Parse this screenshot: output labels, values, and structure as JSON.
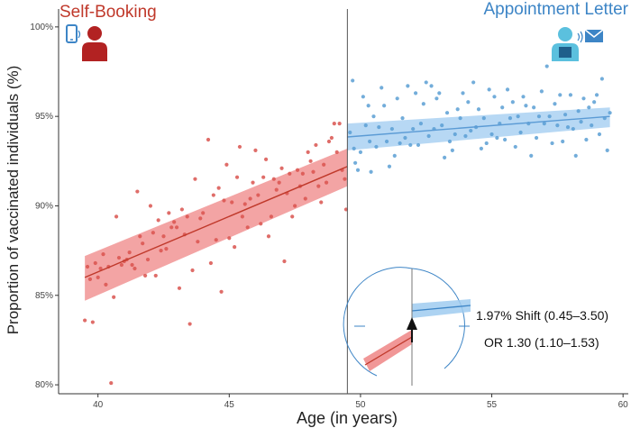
{
  "chart_data": {
    "type": "scatter",
    "title_left": "Self-Booking",
    "title_right": "Appointment Letter",
    "xlabel": "Age (in years)",
    "ylabel": "Proportion of  vaccinated individuals (%)",
    "xlim": [
      38.5,
      60.2
    ],
    "ylim": [
      79.5,
      101.0
    ],
    "x_ticks": [
      40,
      45,
      50,
      55,
      60
    ],
    "y_ticks": [
      80,
      85,
      90,
      95,
      100
    ],
    "y_tick_labels": [
      "80%",
      "85%",
      "90%",
      "95%",
      "100%"
    ],
    "cutoff": 49.5,
    "colors": {
      "left": "#c0392b",
      "right": "#5b9bd5",
      "left_band": "#ef8585",
      "right_band": "#9fcbf0",
      "left_point": "#d9534f",
      "right_point": "#5a9fd4"
    },
    "series": [
      {
        "name": "Self-Booking",
        "fit": {
          "x": [
            39.5,
            49.5
          ],
          "y": [
            86.0,
            92.2
          ]
        },
        "ci_upper": [
          87.2,
          93.2
        ],
        "ci_lower": [
          84.7,
          91.1
        ],
        "points": [
          [
            39.5,
            83.6
          ],
          [
            39.6,
            86.6
          ],
          [
            39.7,
            85.9
          ],
          [
            39.8,
            83.5
          ],
          [
            39.9,
            86.8
          ],
          [
            40.0,
            86.0
          ],
          [
            40.1,
            86.5
          ],
          [
            40.2,
            87.3
          ],
          [
            40.3,
            85.6
          ],
          [
            40.4,
            86.6
          ],
          [
            40.5,
            80.1
          ],
          [
            40.6,
            84.9
          ],
          [
            40.7,
            89.4
          ],
          [
            40.8,
            87.1
          ],
          [
            40.9,
            86.7
          ],
          [
            41.0,
            86.9
          ],
          [
            41.1,
            87.0
          ],
          [
            41.2,
            87.4
          ],
          [
            41.3,
            86.7
          ],
          [
            41.4,
            86.5
          ],
          [
            41.5,
            90.8
          ],
          [
            41.6,
            88.3
          ],
          [
            41.7,
            87.9
          ],
          [
            41.8,
            86.1
          ],
          [
            41.9,
            87.0
          ],
          [
            42.0,
            90.0
          ],
          [
            42.1,
            88.5
          ],
          [
            42.2,
            86.1
          ],
          [
            42.3,
            89.2
          ],
          [
            42.4,
            87.5
          ],
          [
            42.5,
            88.3
          ],
          [
            42.6,
            87.6
          ],
          [
            42.7,
            89.6
          ],
          [
            42.8,
            88.8
          ],
          [
            42.9,
            89.1
          ],
          [
            43.0,
            88.8
          ],
          [
            43.1,
            85.4
          ],
          [
            43.2,
            89.8
          ],
          [
            43.3,
            88.4
          ],
          [
            43.4,
            89.4
          ],
          [
            43.5,
            83.4
          ],
          [
            43.6,
            86.4
          ],
          [
            43.7,
            91.5
          ],
          [
            43.8,
            88.0
          ],
          [
            43.9,
            89.3
          ],
          [
            44.0,
            89.6
          ],
          [
            44.2,
            93.7
          ],
          [
            44.3,
            86.8
          ],
          [
            44.4,
            90.6
          ],
          [
            44.5,
            88.1
          ],
          [
            44.6,
            91.0
          ],
          [
            44.7,
            85.2
          ],
          [
            44.8,
            90.3
          ],
          [
            44.9,
            92.3
          ],
          [
            45.0,
            88.2
          ],
          [
            45.1,
            90.2
          ],
          [
            45.2,
            87.7
          ],
          [
            45.3,
            91.6
          ],
          [
            45.4,
            93.3
          ],
          [
            45.5,
            89.4
          ],
          [
            45.6,
            90.1
          ],
          [
            45.7,
            88.8
          ],
          [
            45.8,
            90.4
          ],
          [
            45.9,
            91.3
          ],
          [
            46.0,
            93.1
          ],
          [
            46.1,
            90.6
          ],
          [
            46.2,
            89.0
          ],
          [
            46.3,
            91.6
          ],
          [
            46.4,
            92.6
          ],
          [
            46.5,
            88.3
          ],
          [
            46.6,
            89.4
          ],
          [
            46.7,
            91.5
          ],
          [
            46.8,
            90.9
          ],
          [
            46.9,
            91.3
          ],
          [
            47.0,
            92.1
          ],
          [
            47.1,
            86.9
          ],
          [
            47.2,
            90.7
          ],
          [
            47.3,
            91.8
          ],
          [
            47.4,
            89.4
          ],
          [
            47.5,
            90.0
          ],
          [
            47.6,
            92.0
          ],
          [
            47.7,
            91.1
          ],
          [
            47.8,
            91.8
          ],
          [
            47.9,
            90.4
          ],
          [
            48.0,
            93.0
          ],
          [
            48.1,
            92.5
          ],
          [
            48.2,
            91.9
          ],
          [
            48.3,
            93.4
          ],
          [
            48.4,
            91.1
          ],
          [
            48.5,
            90.2
          ],
          [
            48.6,
            92.3
          ],
          [
            48.7,
            91.3
          ],
          [
            48.8,
            93.6
          ],
          [
            48.9,
            93.8
          ],
          [
            49.0,
            94.6
          ],
          [
            49.1,
            93.0
          ],
          [
            49.2,
            94.6
          ],
          [
            49.3,
            92.0
          ],
          [
            49.4,
            91.5
          ],
          [
            49.45,
            89.8
          ]
        ]
      },
      {
        "name": "Appointment Letter",
        "fit": {
          "x": [
            49.5,
            59.5
          ],
          "y": [
            93.85,
            95.0
          ]
        },
        "ci_upper": [
          94.6,
          95.5
        ],
        "ci_lower": [
          93.1,
          94.4
        ],
        "points": [
          [
            49.6,
            94.1
          ],
          [
            49.7,
            97.0
          ],
          [
            49.75,
            93.2
          ],
          [
            49.8,
            92.4
          ],
          [
            49.9,
            92.0
          ],
          [
            50.0,
            93.0
          ],
          [
            50.1,
            96.1
          ],
          [
            50.2,
            94.5
          ],
          [
            50.3,
            95.6
          ],
          [
            50.35,
            93.6
          ],
          [
            50.4,
            91.9
          ],
          [
            50.5,
            95.0
          ],
          [
            50.6,
            93.3
          ],
          [
            50.7,
            94.4
          ],
          [
            50.8,
            96.6
          ],
          [
            50.9,
            95.6
          ],
          [
            51.0,
            93.6
          ],
          [
            51.1,
            92.2
          ],
          [
            51.2,
            94.3
          ],
          [
            51.3,
            92.8
          ],
          [
            51.4,
            96.0
          ],
          [
            51.5,
            93.5
          ],
          [
            51.6,
            94.9
          ],
          [
            51.7,
            93.8
          ],
          [
            51.8,
            96.7
          ],
          [
            51.9,
            93.4
          ],
          [
            52.0,
            94.3
          ],
          [
            52.1,
            96.3
          ],
          [
            52.2,
            93.4
          ],
          [
            52.3,
            94.6
          ],
          [
            52.4,
            95.7
          ],
          [
            52.5,
            96.9
          ],
          [
            52.6,
            93.9
          ],
          [
            52.7,
            96.7
          ],
          [
            52.8,
            94.3
          ],
          [
            52.9,
            96.0
          ],
          [
            53.0,
            96.3
          ],
          [
            53.1,
            94.5
          ],
          [
            53.2,
            92.7
          ],
          [
            53.3,
            95.2
          ],
          [
            53.4,
            93.6
          ],
          [
            53.5,
            93.1
          ],
          [
            53.6,
            94.0
          ],
          [
            53.7,
            95.4
          ],
          [
            53.8,
            94.9
          ],
          [
            53.9,
            96.3
          ],
          [
            54.0,
            93.9
          ],
          [
            54.1,
            95.8
          ],
          [
            54.2,
            94.2
          ],
          [
            54.3,
            96.9
          ],
          [
            54.4,
            94.4
          ],
          [
            54.5,
            95.4
          ],
          [
            54.6,
            93.2
          ],
          [
            54.7,
            94.9
          ],
          [
            54.8,
            93.5
          ],
          [
            54.9,
            96.5
          ],
          [
            55.0,
            94.0
          ],
          [
            55.1,
            96.1
          ],
          [
            55.2,
            93.8
          ],
          [
            55.3,
            94.6
          ],
          [
            55.4,
            95.5
          ],
          [
            55.5,
            93.7
          ],
          [
            55.6,
            96.5
          ],
          [
            55.7,
            94.9
          ],
          [
            55.8,
            95.8
          ],
          [
            55.9,
            93.3
          ],
          [
            56.0,
            95.0
          ],
          [
            56.1,
            94.1
          ],
          [
            56.2,
            96.1
          ],
          [
            56.3,
            95.6
          ],
          [
            56.4,
            94.6
          ],
          [
            56.5,
            92.8
          ],
          [
            56.6,
            95.5
          ],
          [
            56.7,
            93.8
          ],
          [
            56.8,
            95.0
          ],
          [
            56.9,
            96.4
          ],
          [
            57.0,
            94.6
          ],
          [
            57.1,
            97.8
          ],
          [
            57.2,
            95.0
          ],
          [
            57.3,
            93.5
          ],
          [
            57.4,
            95.7
          ],
          [
            57.5,
            94.5
          ],
          [
            57.6,
            96.2
          ],
          [
            57.7,
            93.6
          ],
          [
            57.8,
            95.1
          ],
          [
            57.9,
            94.4
          ],
          [
            58.0,
            96.2
          ],
          [
            58.1,
            94.3
          ],
          [
            58.2,
            92.8
          ],
          [
            58.3,
            95.3
          ],
          [
            58.4,
            94.7
          ],
          [
            58.5,
            96.0
          ],
          [
            58.6,
            93.7
          ],
          [
            58.7,
            95.5
          ],
          [
            58.8,
            94.5
          ],
          [
            58.9,
            95.8
          ],
          [
            59.0,
            96.2
          ],
          [
            59.1,
            94.0
          ],
          [
            59.2,
            97.1
          ],
          [
            59.3,
            94.9
          ],
          [
            59.4,
            93.1
          ],
          [
            59.5,
            95.2
          ]
        ]
      }
    ],
    "inset": {
      "shift_label": "1.97% Shift (0.45–3.50)",
      "or_label": "OR 1.30 (1.10–1.53)"
    }
  }
}
